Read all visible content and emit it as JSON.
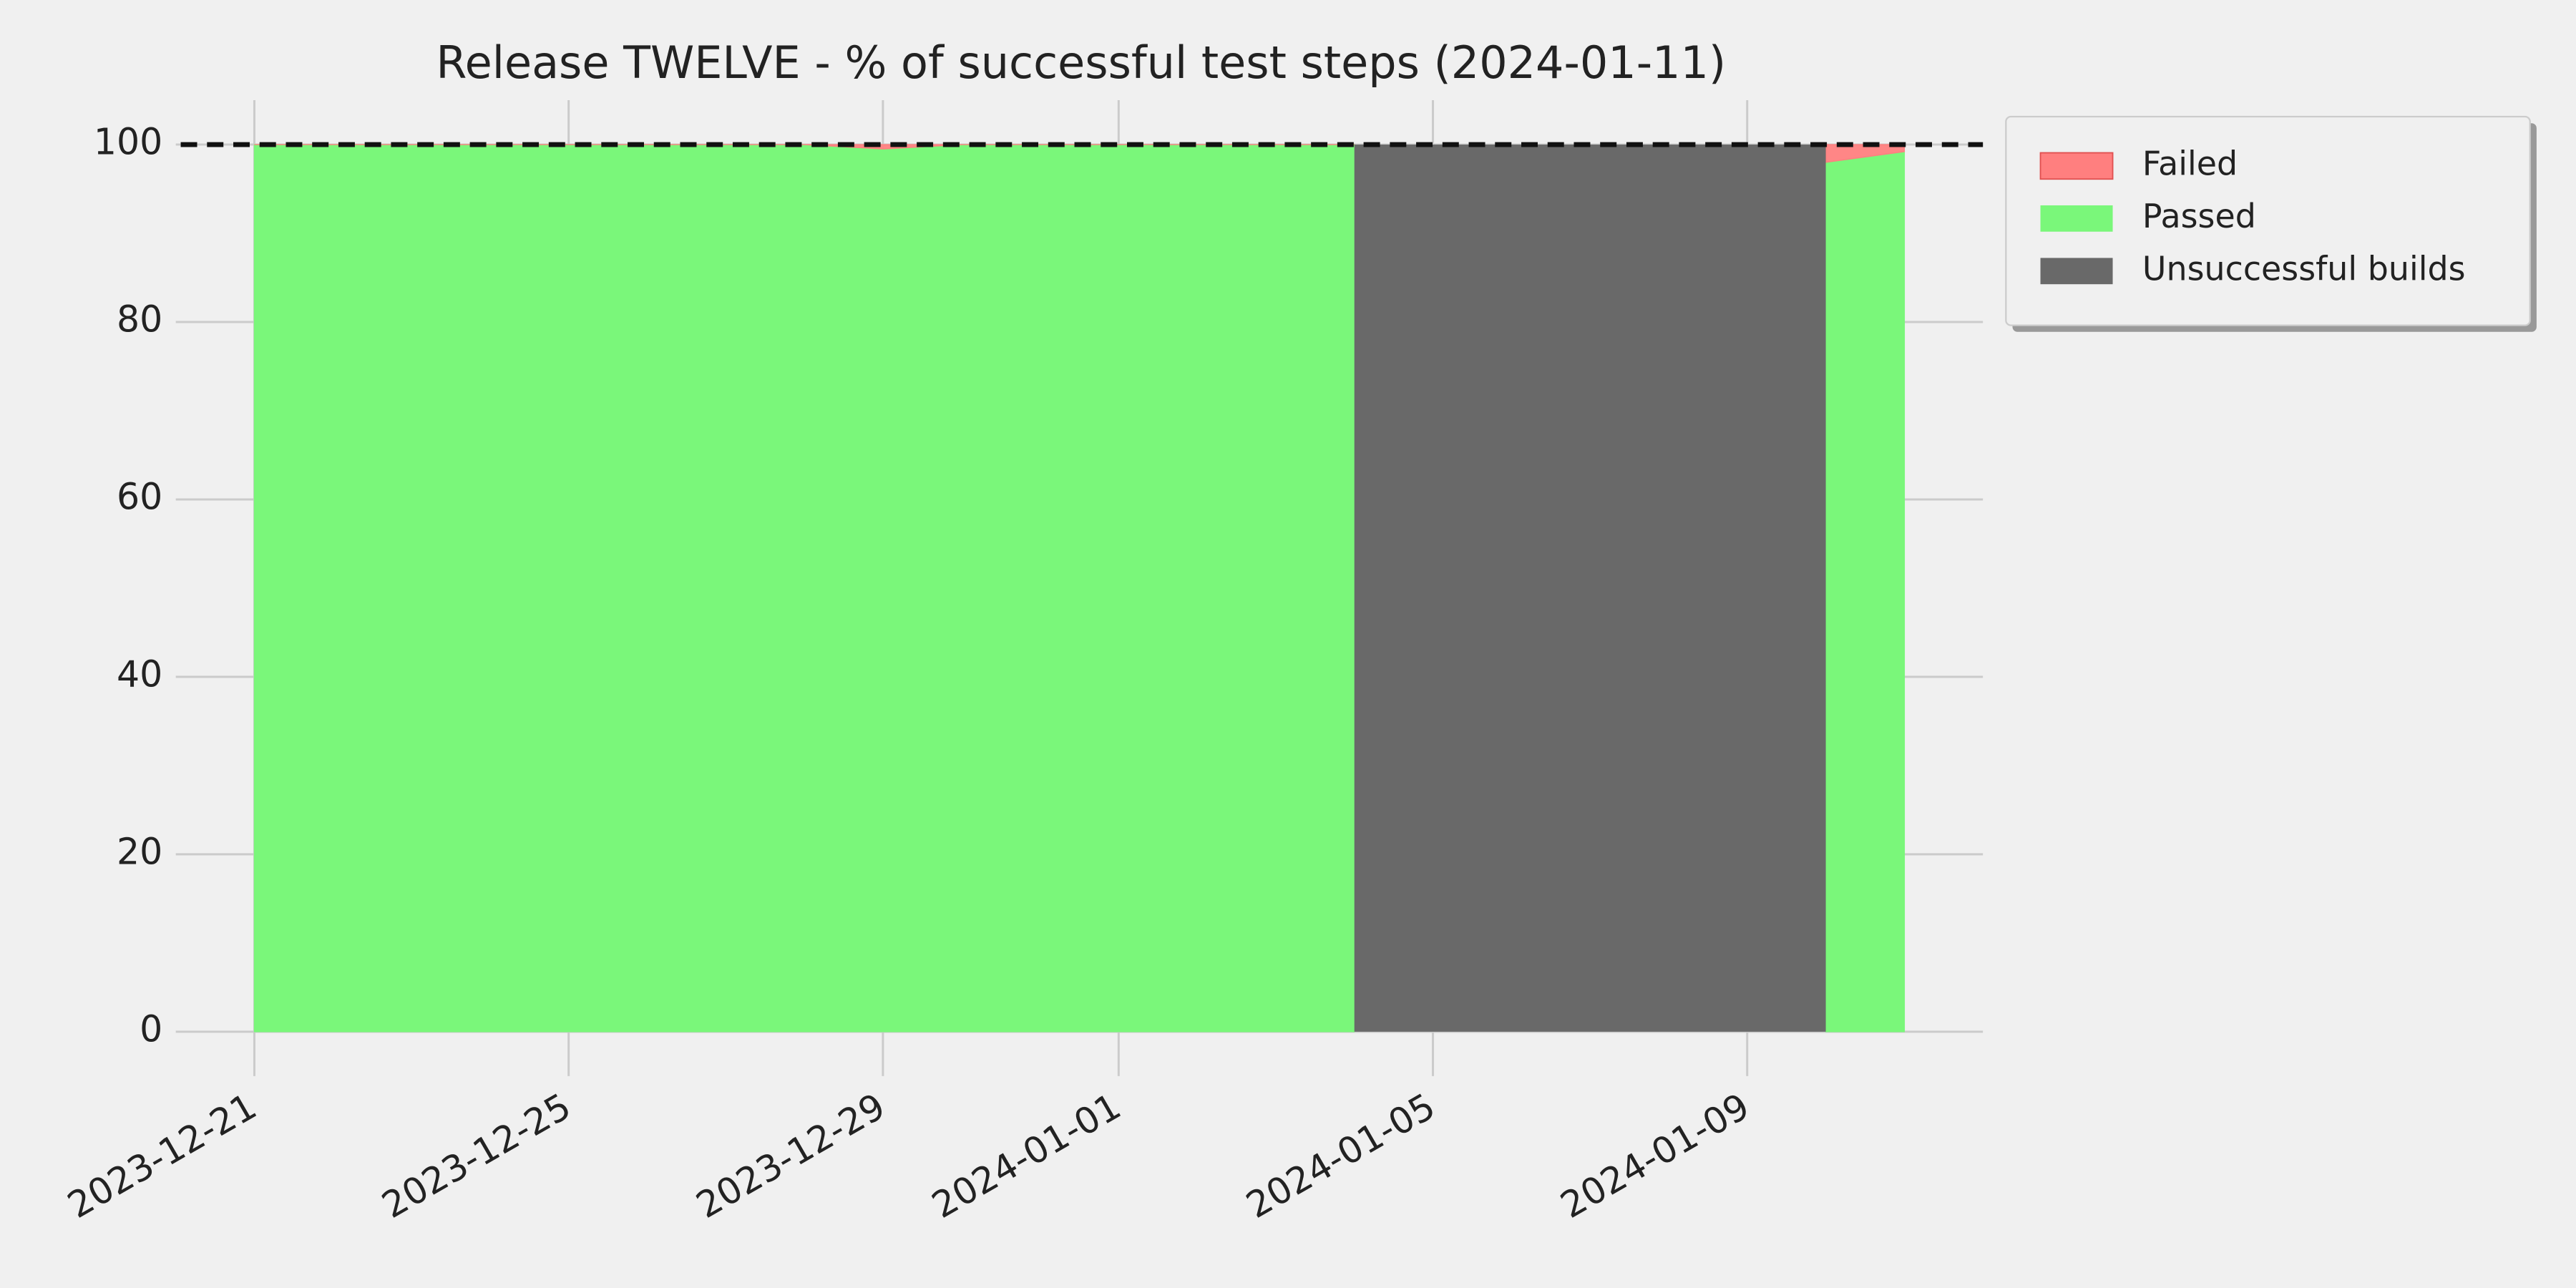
{
  "chart_data": {
    "type": "stacked-area",
    "title": "Release TWELVE - % of successful test steps (2024-01-11)",
    "x": [
      "2023-12-21",
      "2023-12-22",
      "2023-12-23",
      "2023-12-24",
      "2023-12-25",
      "2023-12-26",
      "2023-12-27",
      "2023-12-28",
      "2023-12-29",
      "2023-12-30",
      "2023-12-31",
      "2024-01-01",
      "2024-01-02",
      "2024-01-03",
      "2024-01-04",
      "2024-01-05",
      "2024-01-06",
      "2024-01-07",
      "2024-01-08",
      "2024-01-09",
      "2024-01-10",
      "2024-01-11"
    ],
    "series": [
      {
        "name": "Passed",
        "color": "#7af77a",
        "values": [
          100,
          100,
          100,
          100,
          100,
          100,
          100,
          100,
          99.5,
          100,
          100,
          100,
          100,
          100,
          100,
          null,
          null,
          null,
          null,
          null,
          98,
          99.2
        ]
      },
      {
        "name": "Failed",
        "color": "#ff7f7f",
        "values": [
          0,
          0,
          0,
          0,
          0,
          0,
          0,
          0,
          0.5,
          0,
          0,
          0,
          0,
          0,
          0,
          null,
          null,
          null,
          null,
          null,
          2,
          0.8
        ]
      }
    ],
    "spans": [
      {
        "name": "Unsuccessful builds",
        "color": "#696969",
        "x": [
          "2024-01-04",
          "2024-01-10"
        ],
        "value": 100
      }
    ],
    "legend_order": [
      "series.1",
      "series.0",
      "spans.0"
    ],
    "reference_line": 100,
    "xlim": [
      "2023-12-20",
      "2024-01-12"
    ],
    "xticks": [
      "2023-12-21",
      "2023-12-25",
      "2023-12-29",
      "2024-01-01",
      "2024-01-05",
      "2024-01-09"
    ],
    "ylim": [
      -5,
      105
    ],
    "yticks": [
      0,
      20,
      40,
      60,
      80,
      100
    ],
    "grid": true,
    "legend": "outside-upper-right"
  }
}
